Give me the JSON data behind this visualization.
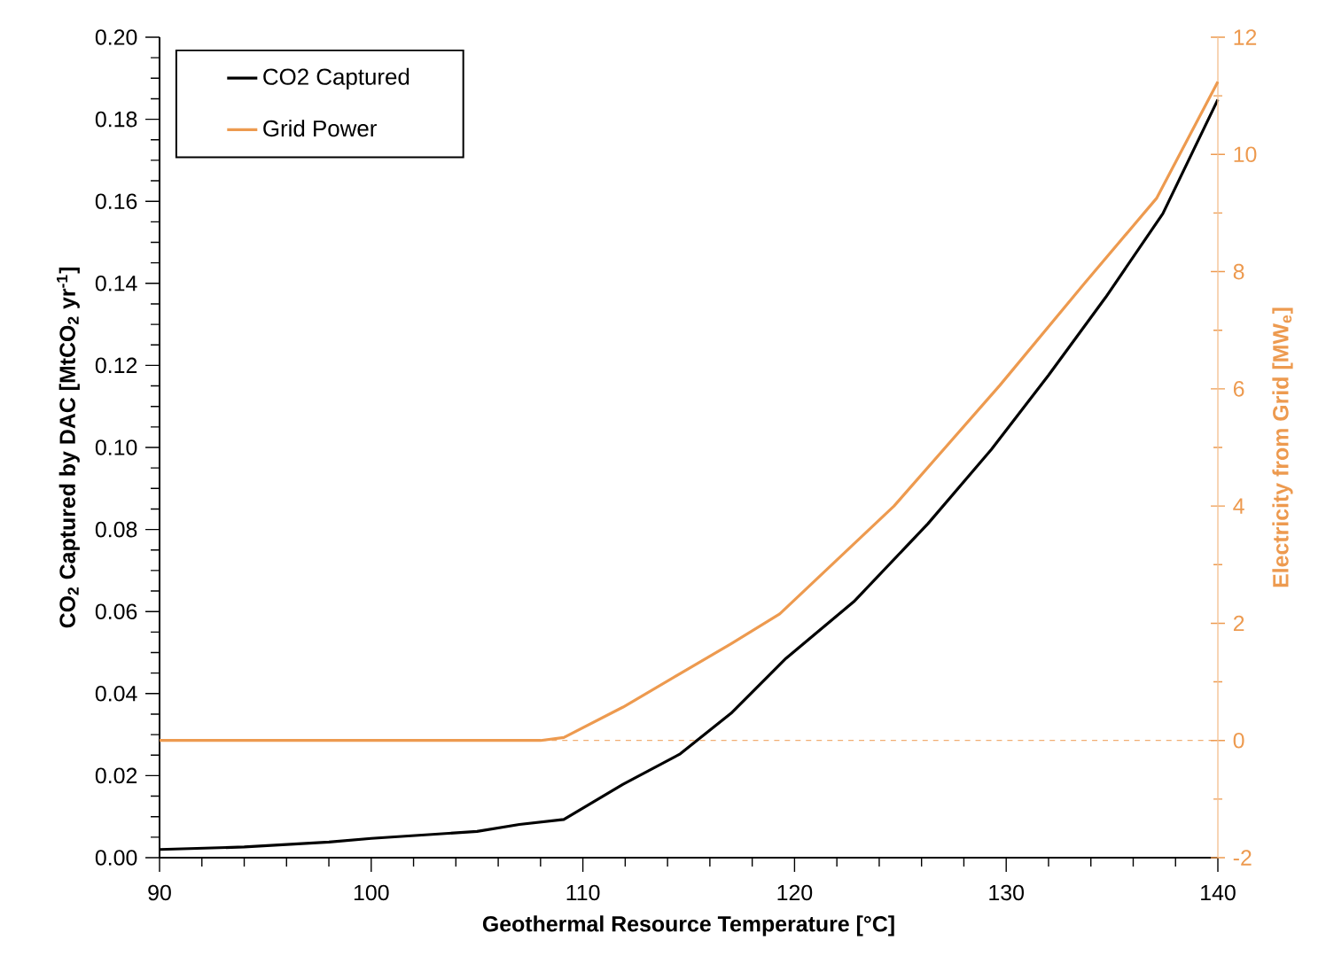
{
  "chart_data": {
    "type": "line",
    "xlabel": "Geothermal Resource Temperature [°C]",
    "ylabel": "CO$_{2}$ Captured by DAC [MtCO$_{2}$ yr$^{-1}$]",
    "y2label": "Electricity from Grid [MW$_{e}$]",
    "xlim": [
      90,
      140
    ],
    "xticks": [
      90,
      100,
      110,
      120,
      130,
      140
    ],
    "ylim": [
      0,
      0.2
    ],
    "yticks": [
      {
        "value": 0,
        "label": "0.00"
      },
      {
        "value": 0.02,
        "label": "0.02"
      },
      {
        "value": 0.04,
        "label": "0.04"
      },
      {
        "value": 0.06,
        "label": "0.06"
      },
      {
        "value": 0.08,
        "label": "0.08"
      },
      {
        "value": 0.1,
        "label": "0.10"
      },
      {
        "value": 0.12,
        "label": "0.12"
      },
      {
        "value": 0.14,
        "label": "0.14"
      },
      {
        "value": 0.16,
        "label": "0.16"
      },
      {
        "value": 0.18,
        "label": "0.18"
      },
      {
        "value": 0.2,
        "label": "0.20"
      }
    ],
    "y2lim": [
      -2,
      12
    ],
    "y2ticks": [
      -2,
      0,
      2,
      4,
      6,
      8,
      10,
      12
    ],
    "legend": "top left",
    "series": [
      {
        "name": "CO2 Captured",
        "color": "#000000",
        "x": [
          90,
          94,
          98,
          100,
          105,
          107,
          109.1,
          111.9,
          114.6,
          117.0,
          119.6,
          122.8,
          126.3,
          129.3,
          132.0,
          134.7,
          137.4,
          140
        ],
        "values": [
          0.002,
          0.0026,
          0.0038,
          0.0047,
          0.0064,
          0.0081,
          0.0093,
          0.0179,
          0.0253,
          0.0352,
          0.0486,
          0.0624,
          0.0814,
          0.0995,
          0.1176,
          0.1366,
          0.157,
          0.1848
        ]
      },
      {
        "name": "Grid Power",
        "color": "#ed9a4f",
        "axis": "y2",
        "x": [
          90,
          108,
          109.1,
          111.9,
          117.0,
          119.3,
          124.7,
          129.7,
          133.7,
          137.1,
          140
        ],
        "values": [
          0,
          0,
          0.05,
          0.57,
          1.65,
          2.16,
          4.0,
          6.06,
          7.8,
          9.25,
          11.24
        ]
      }
    ],
    "ref_lines": [
      {
        "axis": "y2",
        "value": 0,
        "color": "#ed9a4f",
        "line_style": "dashed"
      }
    ]
  }
}
